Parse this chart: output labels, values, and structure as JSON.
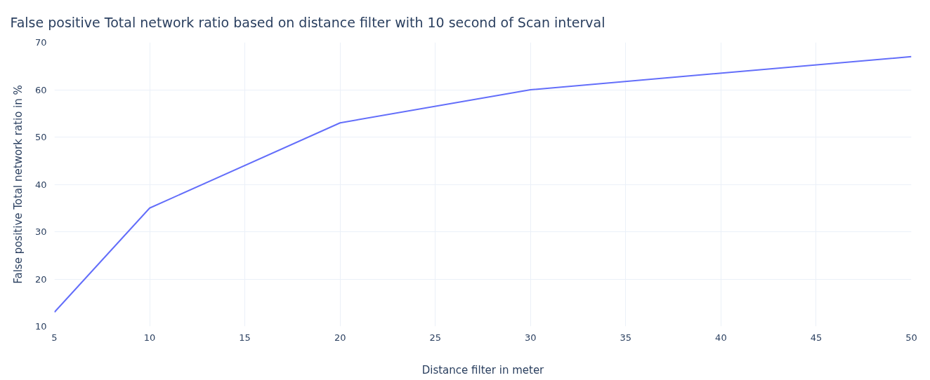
{
  "chart_data": {
    "type": "line",
    "title": "False positive Total network ratio based on distance filter with 10 second of Scan interval",
    "xlabel": "Distance filter in meter",
    "ylabel": "False positive Total network ratio in %",
    "x": [
      5,
      10,
      20,
      30,
      50
    ],
    "series": [
      {
        "color": "#636efa",
        "values": [
          13,
          35,
          53,
          60,
          67
        ]
      }
    ],
    "xlim": [
      5,
      50
    ],
    "ylim": [
      10,
      70
    ],
    "xticks": [
      5,
      10,
      15,
      20,
      25,
      30,
      35,
      40,
      45,
      50
    ],
    "yticks": [
      10,
      20,
      30,
      40,
      50,
      60,
      70
    ],
    "grid": true,
    "marker": "none",
    "line_style": "solid"
  }
}
